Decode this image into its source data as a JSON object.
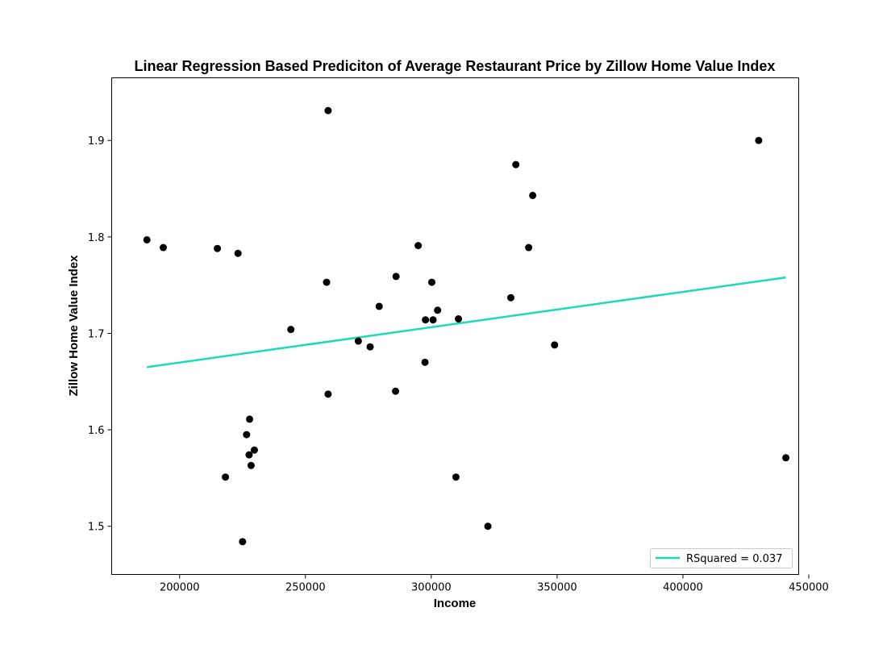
{
  "chart_data": {
    "type": "scatter",
    "title": "Linear Regression Based Prediciton of Average Restaurant Price by Zillow Home Value Index",
    "xlabel": "Income",
    "ylabel": "Zillow Home Value Index",
    "xlim": [
      173000,
      446000
    ],
    "ylim": [
      1.45,
      1.965
    ],
    "xticks": [
      200000,
      250000,
      300000,
      350000,
      400000,
      450000
    ],
    "yticks": [
      1.5,
      1.6,
      1.7,
      1.8,
      1.9
    ],
    "ytick_labels": [
      "1.5",
      "1.6",
      "1.7",
      "1.8",
      "1.9"
    ],
    "grid": false,
    "legend_position": "lower-right",
    "point_color": "#000000",
    "line_color": "#1dd9b6",
    "points": [
      {
        "x": 187000,
        "y": 1.797
      },
      {
        "x": 193500,
        "y": 1.789
      },
      {
        "x": 215000,
        "y": 1.788
      },
      {
        "x": 218200,
        "y": 1.551
      },
      {
        "x": 223200,
        "y": 1.783
      },
      {
        "x": 225000,
        "y": 1.484
      },
      {
        "x": 226600,
        "y": 1.595
      },
      {
        "x": 227600,
        "y": 1.574
      },
      {
        "x": 227800,
        "y": 1.611
      },
      {
        "x": 228400,
        "y": 1.563
      },
      {
        "x": 229700,
        "y": 1.579
      },
      {
        "x": 244200,
        "y": 1.704
      },
      {
        "x": 258400,
        "y": 1.753
      },
      {
        "x": 259000,
        "y": 1.931
      },
      {
        "x": 259000,
        "y": 1.637
      },
      {
        "x": 271000,
        "y": 1.692
      },
      {
        "x": 275700,
        "y": 1.686
      },
      {
        "x": 279300,
        "y": 1.728
      },
      {
        "x": 285800,
        "y": 1.64
      },
      {
        "x": 286000,
        "y": 1.759
      },
      {
        "x": 294800,
        "y": 1.791
      },
      {
        "x": 297500,
        "y": 1.67
      },
      {
        "x": 297700,
        "y": 1.714
      },
      {
        "x": 300200,
        "y": 1.753
      },
      {
        "x": 300700,
        "y": 1.714
      },
      {
        "x": 302500,
        "y": 1.724
      },
      {
        "x": 309800,
        "y": 1.551
      },
      {
        "x": 310800,
        "y": 1.715
      },
      {
        "x": 322500,
        "y": 1.5
      },
      {
        "x": 331600,
        "y": 1.737
      },
      {
        "x": 333600,
        "y": 1.875
      },
      {
        "x": 338700,
        "y": 1.789
      },
      {
        "x": 340300,
        "y": 1.843
      },
      {
        "x": 349000,
        "y": 1.688
      },
      {
        "x": 430100,
        "y": 1.9
      },
      {
        "x": 440900,
        "y": 1.571
      }
    ],
    "regression_line": {
      "x": [
        187000,
        440900
      ],
      "y": [
        1.665,
        1.758
      ]
    },
    "legend": [
      {
        "label": "RSquared = 0.037"
      }
    ]
  }
}
